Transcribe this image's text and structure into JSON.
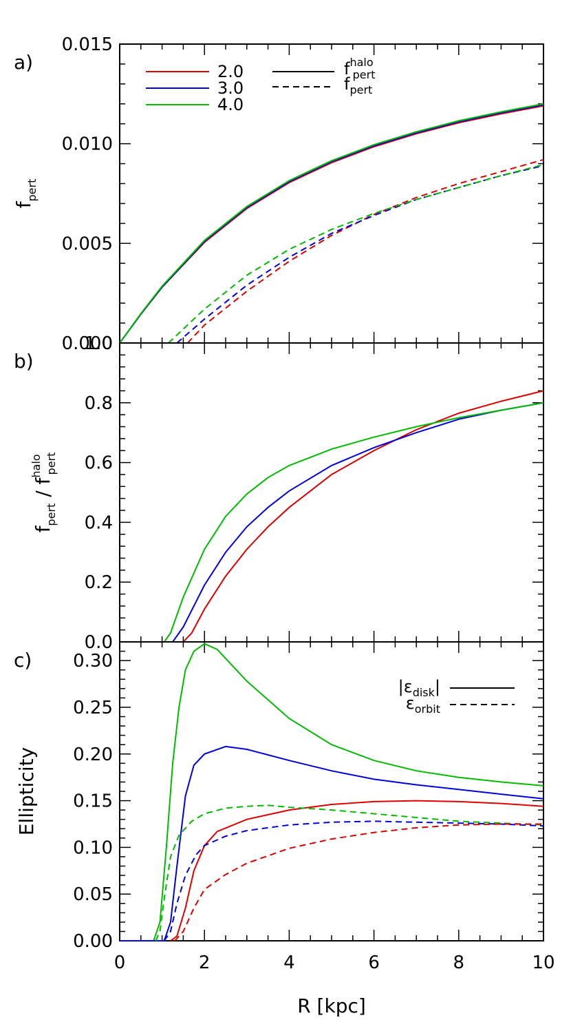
{
  "colors": {
    "2.0": "#dd0000",
    "3.0": "#0000dd",
    "4.0": "#00bb00",
    "axis": "#000000"
  },
  "chart_data": [
    {
      "type": "line",
      "panel": "a)",
      "ylabel": "f",
      "ylabel_sub": "pert",
      "xlim": [
        0,
        10
      ],
      "ylim": [
        0,
        0.015
      ],
      "yticks": [
        "0.000",
        "0.005",
        "0.010",
        "0.015"
      ],
      "legend": {
        "placement": "top-left",
        "colors": [
          "2.0",
          "3.0",
          "4.0"
        ],
        "styles": [
          {
            "style": "solid",
            "text": "f",
            "sub": "pert",
            "sup": "halo"
          },
          {
            "style": "dashed",
            "text": "f",
            "sub": "pert",
            "sup": ""
          }
        ]
      },
      "series": [
        {
          "name": "2.0",
          "style": "solid",
          "points": [
            [
              0,
              0
            ],
            [
              0.5,
              0.00145
            ],
            [
              1,
              0.0028
            ],
            [
              2,
              0.00505
            ],
            [
              3,
              0.00675
            ],
            [
              4,
              0.00805
            ],
            [
              5,
              0.00905
            ],
            [
              6,
              0.00985
            ],
            [
              7,
              0.0105
            ],
            [
              8,
              0.01105
            ],
            [
              9,
              0.0115
            ],
            [
              10,
              0.0119
            ]
          ]
        },
        {
          "name": "3.0",
          "style": "solid",
          "points": [
            [
              0,
              0
            ],
            [
              0.5,
              0.00145
            ],
            [
              1,
              0.0028
            ],
            [
              2,
              0.0051
            ],
            [
              3,
              0.0068
            ],
            [
              4,
              0.0081
            ],
            [
              5,
              0.0091
            ],
            [
              6,
              0.0099
            ],
            [
              7,
              0.01055
            ],
            [
              8,
              0.0111
            ],
            [
              9,
              0.01155
            ],
            [
              10,
              0.01195
            ]
          ]
        },
        {
          "name": "4.0",
          "style": "solid",
          "points": [
            [
              0,
              0
            ],
            [
              0.5,
              0.00148
            ],
            [
              1,
              0.00285
            ],
            [
              2,
              0.00515
            ],
            [
              3,
              0.00685
            ],
            [
              4,
              0.00815
            ],
            [
              5,
              0.00915
            ],
            [
              6,
              0.00995
            ],
            [
              7,
              0.0106
            ],
            [
              8,
              0.01115
            ],
            [
              9,
              0.0116
            ],
            [
              10,
              0.012
            ]
          ]
        },
        {
          "name": "2.0",
          "style": "dashed",
          "points": [
            [
              1.6,
              0
            ],
            [
              2,
              0.0009
            ],
            [
              3,
              0.0026
            ],
            [
              4,
              0.0041
            ],
            [
              5,
              0.0054
            ],
            [
              6,
              0.00645
            ],
            [
              7,
              0.0073
            ],
            [
              8,
              0.008
            ],
            [
              9,
              0.0086
            ],
            [
              10,
              0.0092
            ]
          ]
        },
        {
          "name": "3.0",
          "style": "dashed",
          "points": [
            [
              1.35,
              0
            ],
            [
              2,
              0.0012
            ],
            [
              3,
              0.0029
            ],
            [
              4,
              0.0043
            ],
            [
              5,
              0.0055
            ],
            [
              6,
              0.0064
            ],
            [
              7,
              0.0072
            ],
            [
              8,
              0.0078
            ],
            [
              9,
              0.0084
            ],
            [
              10,
              0.0089
            ]
          ]
        },
        {
          "name": "4.0",
          "style": "dashed",
          "points": [
            [
              1.15,
              0
            ],
            [
              2,
              0.0017
            ],
            [
              3,
              0.0034
            ],
            [
              4,
              0.0047
            ],
            [
              5,
              0.0057
            ],
            [
              6,
              0.0065
            ],
            [
              7,
              0.0072
            ],
            [
              8,
              0.0078
            ],
            [
              9,
              0.0084
            ],
            [
              10,
              0.00895
            ]
          ]
        }
      ]
    },
    {
      "type": "line",
      "panel": "b)",
      "ylabel": "f",
      "ylabel_sub": "pert",
      "ylabel_sep": " / ",
      "ylabel2": "f",
      "ylabel2_sub": "pert",
      "ylabel2_sup": "halo",
      "xlim": [
        0,
        10
      ],
      "ylim": [
        0,
        1.0
      ],
      "yticks": [
        "0.0",
        "0.2",
        "0.4",
        "0.6",
        "0.8",
        "1.0"
      ],
      "series": [
        {
          "name": "2.0",
          "style": "solid",
          "points": [
            [
              1.5,
              0
            ],
            [
              1.7,
              0.03
            ],
            [
              2,
              0.11
            ],
            [
              2.5,
              0.22
            ],
            [
              3,
              0.31
            ],
            [
              3.5,
              0.385
            ],
            [
              4,
              0.45
            ],
            [
              5,
              0.56
            ],
            [
              6,
              0.64
            ],
            [
              7,
              0.71
            ],
            [
              8,
              0.765
            ],
            [
              9,
              0.805
            ],
            [
              10,
              0.84
            ]
          ]
        },
        {
          "name": "3.0",
          "style": "solid",
          "points": [
            [
              1.25,
              0
            ],
            [
              1.5,
              0.05
            ],
            [
              2,
              0.19
            ],
            [
              2.5,
              0.3
            ],
            [
              3,
              0.385
            ],
            [
              3.5,
              0.45
            ],
            [
              4,
              0.505
            ],
            [
              5,
              0.59
            ],
            [
              6,
              0.65
            ],
            [
              7,
              0.7
            ],
            [
              8,
              0.745
            ],
            [
              9,
              0.775
            ],
            [
              10,
              0.8
            ]
          ]
        },
        {
          "name": "4.0",
          "style": "solid",
          "points": [
            [
              1.05,
              0
            ],
            [
              1.2,
              0.03
            ],
            [
              1.5,
              0.15
            ],
            [
              2,
              0.31
            ],
            [
              2.5,
              0.42
            ],
            [
              3,
              0.495
            ],
            [
              3.5,
              0.55
            ],
            [
              4,
              0.59
            ],
            [
              5,
              0.645
            ],
            [
              6,
              0.685
            ],
            [
              7,
              0.72
            ],
            [
              8,
              0.75
            ],
            [
              9,
              0.775
            ],
            [
              10,
              0.8
            ]
          ]
        },
        {
          "name": "",
          "style": "solid",
          "color": "axis",
          "points": [
            [
              0,
              1.0
            ],
            [
              10,
              1.0
            ]
          ]
        }
      ]
    },
    {
      "type": "line",
      "panel": "c)",
      "ylabel": "Ellipticity",
      "xlabel": "R  [kpc]",
      "xlim": [
        0,
        10
      ],
      "ylim": [
        0,
        0.32
      ],
      "xticks": [
        "0",
        "2",
        "4",
        "6",
        "8",
        "10"
      ],
      "yticks": [
        "0.00",
        "0.05",
        "0.10",
        "0.15",
        "0.20",
        "0.25",
        "0.30"
      ],
      "legend": {
        "placement": "top-right",
        "styles": [
          {
            "style": "solid",
            "text": "|ε",
            "sub": "disk",
            "after": "|"
          },
          {
            "style": "dashed",
            "text": "ε",
            "sub": "orbit",
            "after": ""
          }
        ]
      },
      "series": [
        {
          "name": "4.0",
          "style": "solid",
          "points": [
            [
              0,
              0
            ],
            [
              0.8,
              0
            ],
            [
              0.95,
              0.02
            ],
            [
              1.1,
              0.1
            ],
            [
              1.25,
              0.19
            ],
            [
              1.4,
              0.25
            ],
            [
              1.55,
              0.29
            ],
            [
              1.75,
              0.31
            ],
            [
              2,
              0.318
            ],
            [
              2.3,
              0.312
            ],
            [
              3,
              0.278
            ],
            [
              4,
              0.238
            ],
            [
              5,
              0.21
            ],
            [
              6,
              0.193
            ],
            [
              7,
              0.182
            ],
            [
              8,
              0.175
            ],
            [
              9,
              0.17
            ],
            [
              10,
              0.166
            ]
          ]
        },
        {
          "name": "3.0",
          "style": "solid",
          "points": [
            [
              0,
              0
            ],
            [
              1.05,
              0
            ],
            [
              1.2,
              0.02
            ],
            [
              1.35,
              0.08
            ],
            [
              1.55,
              0.155
            ],
            [
              1.75,
              0.188
            ],
            [
              2,
              0.2
            ],
            [
              2.5,
              0.208
            ],
            [
              3,
              0.205
            ],
            [
              4,
              0.193
            ],
            [
              5,
              0.182
            ],
            [
              6,
              0.173
            ],
            [
              7,
              0.167
            ],
            [
              8,
              0.162
            ],
            [
              9,
              0.157
            ],
            [
              10,
              0.152
            ]
          ]
        },
        {
          "name": "2.0",
          "style": "solid",
          "points": [
            [
              1.2,
              0
            ],
            [
              1.35,
              0.005
            ],
            [
              1.55,
              0.035
            ],
            [
              1.75,
              0.075
            ],
            [
              2,
              0.102
            ],
            [
              2.3,
              0.117
            ],
            [
              3,
              0.13
            ],
            [
              4,
              0.14
            ],
            [
              5,
              0.146
            ],
            [
              6,
              0.149
            ],
            [
              7,
              0.15
            ],
            [
              8,
              0.149
            ],
            [
              9,
              0.147
            ],
            [
              10,
              0.144
            ]
          ]
        },
        {
          "name": "4.0",
          "style": "dashed",
          "points": [
            [
              0.85,
              0
            ],
            [
              0.95,
              0.01
            ],
            [
              1.05,
              0.045
            ],
            [
              1.2,
              0.09
            ],
            [
              1.4,
              0.113
            ],
            [
              1.7,
              0.128
            ],
            [
              2,
              0.136
            ],
            [
              2.5,
              0.142
            ],
            [
              3,
              0.144
            ],
            [
              3.5,
              0.145
            ],
            [
              4,
              0.143
            ],
            [
              5,
              0.14
            ],
            [
              6,
              0.136
            ],
            [
              7,
              0.132
            ],
            [
              8,
              0.128
            ],
            [
              9,
              0.126
            ],
            [
              10,
              0.124
            ]
          ]
        },
        {
          "name": "3.0",
          "style": "dashed",
          "points": [
            [
              1.05,
              0
            ],
            [
              1.2,
              0.01
            ],
            [
              1.35,
              0.04
            ],
            [
              1.55,
              0.07
            ],
            [
              1.8,
              0.092
            ],
            [
              2,
              0.102
            ],
            [
              2.5,
              0.112
            ],
            [
              3,
              0.118
            ],
            [
              4,
              0.124
            ],
            [
              5,
              0.127
            ],
            [
              6,
              0.128
            ],
            [
              7,
              0.127
            ],
            [
              8,
              0.126
            ],
            [
              9,
              0.125
            ],
            [
              10,
              0.123
            ]
          ]
        },
        {
          "name": "2.0",
          "style": "dashed",
          "points": [
            [
              1.3,
              0
            ],
            [
              1.5,
              0.01
            ],
            [
              1.75,
              0.035
            ],
            [
              2,
              0.055
            ],
            [
              2.5,
              0.071
            ],
            [
              3,
              0.083
            ],
            [
              4,
              0.099
            ],
            [
              5,
              0.109
            ],
            [
              6,
              0.116
            ],
            [
              7,
              0.121
            ],
            [
              8,
              0.124
            ],
            [
              9,
              0.125
            ],
            [
              10,
              0.125
            ]
          ]
        }
      ]
    }
  ]
}
